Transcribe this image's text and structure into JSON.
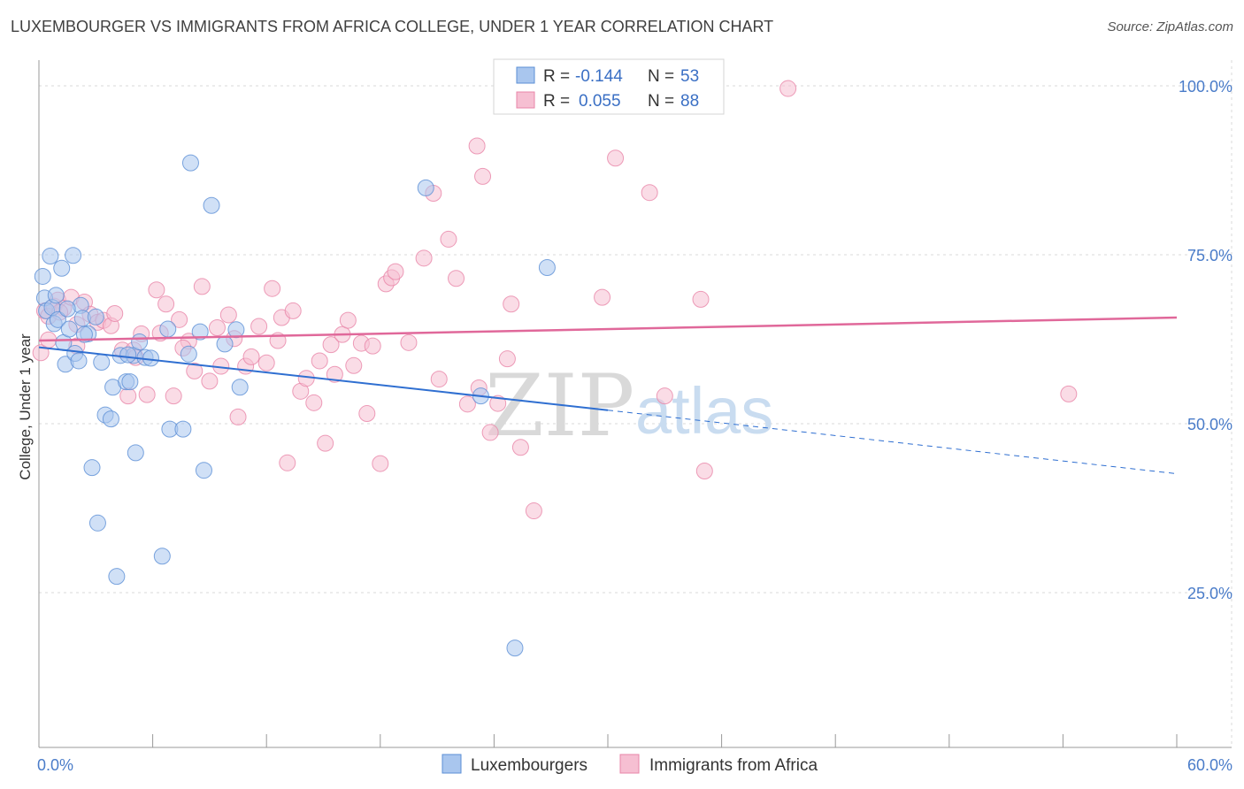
{
  "title": "LUXEMBOURGER VS IMMIGRANTS FROM AFRICA COLLEGE, UNDER 1 YEAR CORRELATION CHART",
  "source": "Source: ZipAtlas.com",
  "watermark": {
    "zip": "ZIP",
    "atlas": "atlas"
  },
  "colors": {
    "blue": "#5b8fd6",
    "blue_fill": "#a9c6ee",
    "blue_line": "#2f6fd1",
    "pink": "#e885a8",
    "pink_fill": "#f6bfd2",
    "pink_line": "#e0689a",
    "tick_text": "#4a7cc9"
  },
  "legend": {
    "r_label": "R =",
    "n_label": "N =",
    "blue": {
      "r": "-0.144",
      "n": "53"
    },
    "pink": {
      "r": "0.055",
      "n": "88"
    }
  },
  "bottom_legend": {
    "blue": "Luxembourgers",
    "pink": "Immigrants from Africa"
  },
  "chart_data": {
    "type": "scatter",
    "title": "LUXEMBOURGER VS IMMIGRANTS FROM AFRICA COLLEGE, UNDER 1 YEAR CORRELATION CHART",
    "xlabel": "",
    "ylabel": "College, Under 1 year",
    "xlim": [
      0,
      60
    ],
    "ylim": [
      5,
      103
    ],
    "x_tick_labels": [
      "0.0%",
      "60.0%"
    ],
    "y_ticks": [
      {
        "value": 100,
        "label": "100.0%"
      },
      {
        "value": 75,
        "label": "75.0%"
      },
      {
        "value": 50,
        "label": "50.0%"
      },
      {
        "value": 25,
        "label": "25.0%"
      }
    ],
    "grid": true,
    "legend_position": "top-center",
    "series": [
      {
        "name": "Luxembourgers",
        "color": "blue",
        "r": -0.144,
        "n": 53,
        "trend": {
          "x0": 0,
          "y0": 61.3,
          "x1": 30,
          "y1": 52.0,
          "dashed_to_x": 60,
          "dashed_to_y": 42.6
        },
        "points": [
          [
            0.2,
            71.8
          ],
          [
            0.3,
            68.6
          ],
          [
            0.4,
            66.7
          ],
          [
            0.6,
            74.8
          ],
          [
            0.7,
            67.2
          ],
          [
            0.8,
            64.8
          ],
          [
            1.0,
            65.4
          ],
          [
            1.2,
            73.0
          ],
          [
            1.3,
            62.0
          ],
          [
            1.4,
            58.8
          ],
          [
            1.6,
            64.0
          ],
          [
            1.8,
            74.9
          ],
          [
            1.9,
            60.4
          ],
          [
            2.1,
            59.3
          ],
          [
            2.2,
            67.5
          ],
          [
            2.3,
            65.6
          ],
          [
            2.6,
            63.3
          ],
          [
            2.8,
            43.5
          ],
          [
            3.1,
            35.3
          ],
          [
            3.3,
            59.1
          ],
          [
            3.5,
            51.3
          ],
          [
            3.8,
            50.7
          ],
          [
            3.9,
            55.4
          ],
          [
            4.1,
            27.4
          ],
          [
            4.3,
            60.1
          ],
          [
            4.6,
            56.2
          ],
          [
            4.8,
            56.2
          ],
          [
            5.0,
            60.1
          ],
          [
            5.1,
            45.7
          ],
          [
            5.3,
            62.1
          ],
          [
            5.6,
            59.8
          ],
          [
            5.9,
            59.7
          ],
          [
            6.5,
            30.4
          ],
          [
            6.8,
            64.0
          ],
          [
            6.9,
            49.2
          ],
          [
            7.6,
            49.2
          ],
          [
            7.9,
            60.3
          ],
          [
            8.0,
            88.6
          ],
          [
            8.5,
            63.6
          ],
          [
            8.7,
            43.1
          ],
          [
            9.1,
            82.3
          ],
          [
            9.8,
            61.8
          ],
          [
            10.4,
            63.9
          ],
          [
            10.6,
            55.4
          ],
          [
            20.4,
            84.9
          ],
          [
            23.3,
            54.1
          ],
          [
            25.1,
            16.8
          ],
          [
            26.8,
            73.1
          ],
          [
            1.5,
            67.0
          ],
          [
            2.4,
            63.2
          ],
          [
            4.7,
            60.2
          ],
          [
            3.0,
            65.8
          ],
          [
            0.9,
            69.0
          ]
        ]
      },
      {
        "name": "Immigrants from Africa",
        "color": "pink",
        "r": 0.055,
        "n": 88,
        "trend": {
          "x0": 0,
          "y0": 62.3,
          "x1": 60,
          "y1": 65.7
        },
        "points": [
          [
            0.1,
            60.5
          ],
          [
            0.3,
            66.7
          ],
          [
            0.5,
            65.9
          ],
          [
            0.8,
            67.4
          ],
          [
            1.0,
            68.3
          ],
          [
            1.3,
            67.1
          ],
          [
            1.7,
            68.7
          ],
          [
            2.0,
            64.7
          ],
          [
            2.4,
            68.0
          ],
          [
            2.7,
            66.2
          ],
          [
            3.1,
            65.0
          ],
          [
            3.4,
            65.3
          ],
          [
            3.8,
            64.5
          ],
          [
            4.0,
            66.3
          ],
          [
            4.4,
            60.9
          ],
          [
            4.7,
            54.1
          ],
          [
            5.0,
            60.9
          ],
          [
            5.4,
            63.3
          ],
          [
            5.7,
            54.3
          ],
          [
            6.2,
            69.8
          ],
          [
            6.4,
            63.4
          ],
          [
            6.7,
            67.7
          ],
          [
            7.1,
            54.1
          ],
          [
            7.4,
            65.4
          ],
          [
            7.9,
            62.2
          ],
          [
            8.2,
            57.8
          ],
          [
            8.6,
            70.3
          ],
          [
            9.0,
            56.3
          ],
          [
            9.4,
            64.2
          ],
          [
            9.6,
            58.5
          ],
          [
            10.0,
            66.1
          ],
          [
            10.3,
            62.6
          ],
          [
            10.5,
            51.0
          ],
          [
            10.9,
            58.5
          ],
          [
            11.2,
            59.9
          ],
          [
            11.6,
            64.4
          ],
          [
            12.0,
            59.0
          ],
          [
            12.3,
            70.0
          ],
          [
            12.6,
            62.3
          ],
          [
            12.8,
            65.7
          ],
          [
            13.1,
            44.2
          ],
          [
            13.4,
            66.7
          ],
          [
            13.8,
            54.8
          ],
          [
            14.1,
            56.7
          ],
          [
            14.5,
            53.1
          ],
          [
            14.8,
            59.3
          ],
          [
            15.1,
            47.1
          ],
          [
            15.4,
            61.7
          ],
          [
            15.6,
            57.3
          ],
          [
            16.0,
            63.2
          ],
          [
            16.3,
            65.3
          ],
          [
            16.6,
            58.6
          ],
          [
            17.0,
            61.9
          ],
          [
            17.3,
            51.5
          ],
          [
            17.6,
            61.5
          ],
          [
            18.0,
            44.1
          ],
          [
            18.3,
            70.7
          ],
          [
            18.6,
            71.6
          ],
          [
            18.8,
            72.5
          ],
          [
            19.5,
            62.0
          ],
          [
            20.3,
            74.5
          ],
          [
            20.8,
            84.1
          ],
          [
            21.1,
            56.6
          ],
          [
            21.6,
            77.3
          ],
          [
            22.0,
            71.5
          ],
          [
            22.6,
            52.9
          ],
          [
            23.1,
            91.1
          ],
          [
            23.2,
            55.3
          ],
          [
            23.4,
            86.6
          ],
          [
            23.8,
            48.7
          ],
          [
            24.2,
            53.0
          ],
          [
            24.7,
            59.6
          ],
          [
            24.9,
            67.7
          ],
          [
            25.4,
            46.5
          ],
          [
            26.1,
            37.1
          ],
          [
            29.7,
            68.7
          ],
          [
            30.4,
            89.3
          ],
          [
            32.2,
            84.2
          ],
          [
            33.0,
            54.1
          ],
          [
            34.9,
            68.4
          ],
          [
            35.1,
            43.0
          ],
          [
            39.5,
            99.6
          ],
          [
            54.3,
            54.4
          ],
          [
            0.5,
            62.4
          ],
          [
            1.1,
            66.5
          ],
          [
            2.0,
            61.5
          ],
          [
            5.1,
            59.8
          ],
          [
            7.6,
            61.2
          ]
        ]
      }
    ]
  }
}
